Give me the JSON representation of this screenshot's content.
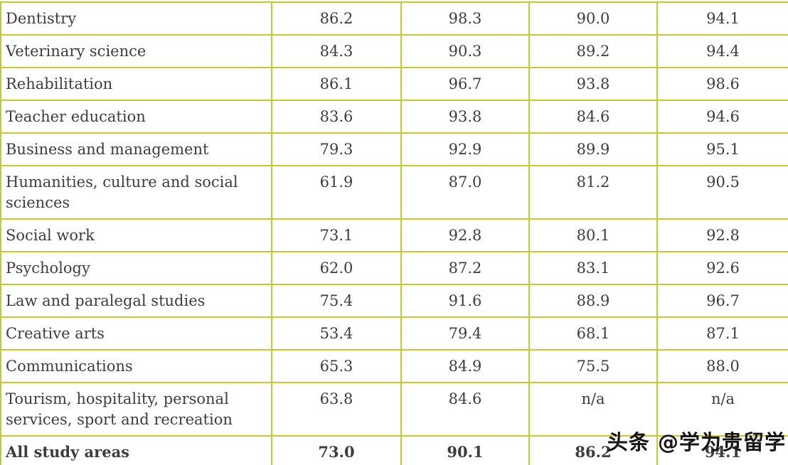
{
  "chart_data": {
    "type": "table",
    "header_visible": false,
    "rows": [
      {
        "label": "Dentistry",
        "values": [
          "86.2",
          "98.3",
          "90.0",
          "94.1"
        ],
        "bold": false
      },
      {
        "label": "Veterinary science",
        "values": [
          "84.3",
          "90.3",
          "89.2",
          "94.4"
        ],
        "bold": false
      },
      {
        "label": "Rehabilitation",
        "values": [
          "86.1",
          "96.7",
          "93.8",
          "98.6"
        ],
        "bold": false
      },
      {
        "label": "Teacher education",
        "values": [
          "83.6",
          "93.8",
          "84.6",
          "94.6"
        ],
        "bold": false
      },
      {
        "label": "Business and management",
        "values": [
          "79.3",
          "92.9",
          "89.9",
          "95.1"
        ],
        "bold": false
      },
      {
        "label": "Humanities, culture and social sciences",
        "values": [
          "61.9",
          "87.0",
          "81.2",
          "90.5"
        ],
        "bold": false
      },
      {
        "label": "Social work",
        "values": [
          "73.1",
          "92.8",
          "80.1",
          "92.8"
        ],
        "bold": false
      },
      {
        "label": "Psychology",
        "values": [
          "62.0",
          "87.2",
          "83.1",
          "92.6"
        ],
        "bold": false
      },
      {
        "label": "Law and paralegal studies",
        "values": [
          "75.4",
          "91.6",
          "88.9",
          "96.7"
        ],
        "bold": false
      },
      {
        "label": "Creative arts",
        "values": [
          "53.4",
          "79.4",
          "68.1",
          "87.1"
        ],
        "bold": false
      },
      {
        "label": "Communications",
        "values": [
          "65.3",
          "84.9",
          "75.5",
          "88.0"
        ],
        "bold": false
      },
      {
        "label": "Tourism, hospitality, personal services, sport and recreation",
        "values": [
          "63.8",
          "84.6",
          "n/a",
          "n/a"
        ],
        "bold": false
      },
      {
        "label": "All study areas",
        "values": [
          "73.0",
          "90.1",
          "86.2",
          "94.1"
        ],
        "bold": true,
        "last_value_obscured_by_watermark": true
      }
    ]
  },
  "watermark": {
    "text": "头条 @学为贵留学"
  },
  "colors": {
    "border": "#c6ca2f",
    "text": "#3d3d3d",
    "watermark": "#161616"
  }
}
